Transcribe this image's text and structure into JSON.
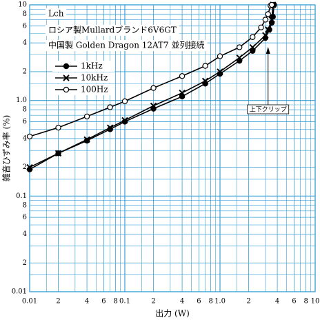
{
  "chart_data": {
    "type": "line",
    "log_x": true,
    "log_y": true,
    "grid": true,
    "grid_color": "#3a9fd6",
    "annotations": [
      "Lch",
      "ロシア製Mullardブランド6V6GT",
      "中国製 Golden Dragon 12AT7 並列接続"
    ],
    "callout": {
      "text": "上下クリップ",
      "x": 3.2
    },
    "xlabel": "出力 (W)",
    "ylabel": "雑音ひずみ率 (%)",
    "xlim": [
      0.01,
      10
    ],
    "ylim": [
      0.01,
      10
    ],
    "xticks": [
      {
        "value": 0.01,
        "label": "0.01"
      },
      {
        "value": 0.02,
        "label": "2"
      },
      {
        "value": 0.04,
        "label": "4"
      },
      {
        "value": 0.06,
        "label": "6"
      },
      {
        "value": 0.08,
        "label": "8"
      },
      0.1,
      {
        "value": 0.2,
        "label": "2"
      },
      {
        "value": 0.4,
        "label": "4"
      },
      {
        "value": 0.6,
        "label": "6"
      },
      {
        "value": 0.8,
        "label": "8"
      },
      {
        "value": 1,
        "label": "1.0"
      },
      2,
      4,
      6,
      8,
      10
    ],
    "yticks": [
      {
        "value": 0.01,
        "label": "0.01"
      },
      {
        "value": 0.02,
        "label": "2"
      },
      {
        "value": 0.04,
        "label": "4"
      },
      {
        "value": 0.06,
        "label": "6"
      },
      {
        "value": 0.08,
        "label": "8"
      },
      0.1,
      {
        "value": 0.2,
        "label": "2"
      },
      {
        "value": 0.4,
        "label": "4"
      },
      {
        "value": 0.6,
        "label": "6"
      },
      {
        "value": 0.8,
        "label": "8"
      },
      {
        "value": 1,
        "label": "1.0"
      },
      2,
      4,
      6,
      8,
      10
    ],
    "minor_grid": [
      0.015,
      0.03,
      0.05,
      0.07,
      0.09,
      0.15,
      0.3,
      0.5,
      0.7,
      0.9,
      1.5,
      3,
      5,
      7,
      9
    ],
    "series": [
      {
        "name": "1kHz",
        "marker": "filled-circle",
        "color": "#000000",
        "x": [
          0.01,
          0.02,
          0.04,
          0.07,
          0.1,
          0.2,
          0.4,
          0.7,
          1.0,
          1.6,
          2.2,
          3.0,
          3.3,
          3.5,
          3.6,
          3.7
        ],
        "values": [
          0.19,
          0.28,
          0.38,
          0.5,
          0.6,
          0.82,
          1.1,
          1.5,
          1.9,
          2.6,
          3.3,
          4.5,
          5.5,
          6.5,
          7.5,
          10
        ]
      },
      {
        "name": "10kHz",
        "marker": "cross",
        "color": "#000000",
        "x": [
          0.01,
          0.02,
          0.04,
          0.07,
          0.1,
          0.2,
          0.4,
          0.7,
          1.0,
          1.6,
          2.2,
          3.0,
          3.2,
          3.5,
          3.6
        ],
        "values": [
          0.2,
          0.28,
          0.39,
          0.52,
          0.62,
          0.88,
          1.2,
          1.6,
          2.0,
          2.8,
          3.6,
          4.8,
          5.5,
          7,
          10
        ]
      },
      {
        "name": "100Hz",
        "marker": "open-circle",
        "color": "#000000",
        "x": [
          0.01,
          0.02,
          0.04,
          0.07,
          0.1,
          0.2,
          0.4,
          0.7,
          1.0,
          1.6,
          2.2,
          2.7,
          3.0,
          3.2,
          3.4,
          3.5
        ],
        "values": [
          0.42,
          0.52,
          0.68,
          0.85,
          0.98,
          1.35,
          1.8,
          2.3,
          2.9,
          3.6,
          4.6,
          5.8,
          7,
          8,
          9.8,
          10
        ]
      }
    ]
  }
}
